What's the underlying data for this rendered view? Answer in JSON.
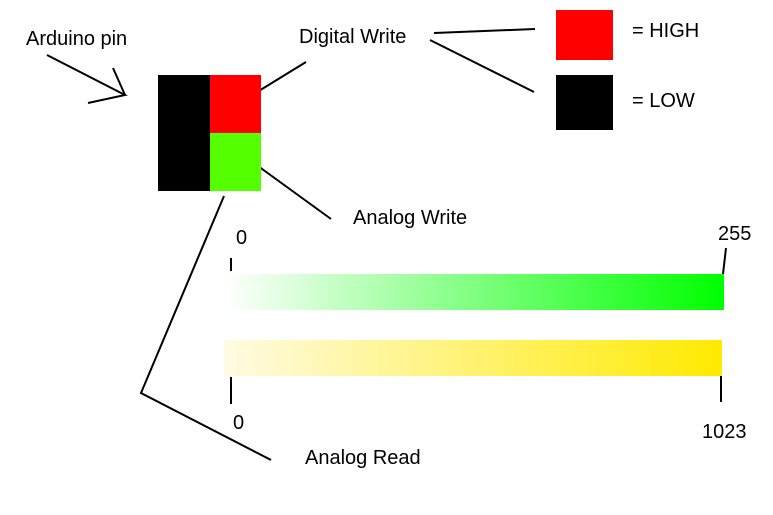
{
  "labels": {
    "arduino_pin": "Arduino pin",
    "digital_write": "Digital Write",
    "analog_write": "Analog Write",
    "analog_read": "Analog Read",
    "high_legend": "= HIGH",
    "low_legend": "= LOW"
  },
  "write_range": {
    "min": "0",
    "max": "255"
  },
  "read_range": {
    "min": "0",
    "max": "1023"
  },
  "colors": {
    "pin_body": "#000000",
    "digital_write": "#ff0000",
    "analog_write": "#55ff00",
    "high": "#ff0000",
    "low": "#000000",
    "write_gradient_start": "#ffffff",
    "write_gradient_end": "#00ff00",
    "read_gradient_start": "#fffbe3",
    "read_gradient_end": "#ffea00",
    "line": "#000000"
  }
}
